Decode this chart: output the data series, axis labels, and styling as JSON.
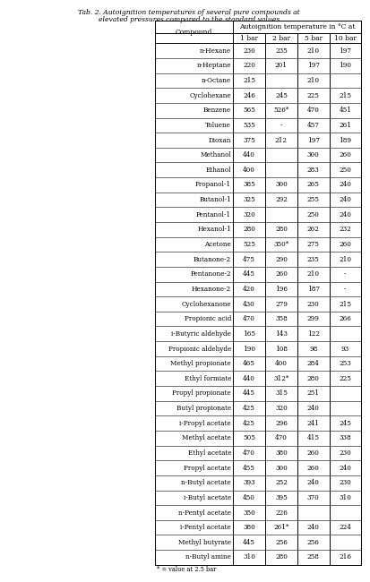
{
  "title_line1": "Tab. 2. Autoignition temperatures of several pure compounds at",
  "title_line2": "elevated pressures compared to the standard values",
  "header_row1": [
    "Compound",
    "Autoignition temperature in °C at",
    "",
    "",
    ""
  ],
  "header_row2": [
    "",
    "1 bar",
    "2 bar",
    "5 bar",
    "10 bar"
  ],
  "rows": [
    [
      "n-Hexane",
      "230",
      "235",
      "210",
      "197"
    ],
    [
      "n-Heptane",
      "220",
      "201",
      "197",
      "190"
    ],
    [
      "n-Octane",
      "215",
      "",
      "210",
      ""
    ],
    [
      "Cyclohexane",
      "246",
      "245",
      "225",
      "215"
    ],
    [
      "Benzene",
      "565",
      "526*",
      "470",
      "451"
    ],
    [
      "Toluene",
      "535",
      "-",
      "457",
      "261"
    ],
    [
      "Dioxan",
      "375",
      "212",
      "197",
      "189"
    ],
    [
      "Methanol",
      "440",
      "",
      "300",
      "260"
    ],
    [
      "Ethanol",
      "400",
      "",
      "283",
      "250"
    ],
    [
      "Propanol-1",
      "385",
      "300",
      "265",
      "240"
    ],
    [
      "Butanol-1",
      "325",
      "292",
      "255",
      "240"
    ],
    [
      "Pentanol-1",
      "320",
      "",
      "250",
      "240"
    ],
    [
      "Hexanol-1",
      "280",
      "280",
      "262",
      "232"
    ],
    [
      "Acetone",
      "525",
      "350*",
      "275",
      "260"
    ],
    [
      "Butanone-2",
      "475",
      "290",
      "235",
      "210"
    ],
    [
      "Pentanone-2",
      "445",
      "260",
      "210",
      "-"
    ],
    [
      "Hexanone-2",
      "420",
      "196",
      "187",
      "-"
    ],
    [
      "Cyclohexanone",
      "430",
      "279",
      "230",
      "215"
    ],
    [
      "Propionic acid",
      "470",
      "358",
      "299",
      "266"
    ],
    [
      "i-Butyric aldehyde",
      "165",
      "143",
      "122",
      ""
    ],
    [
      "Propionic aldehyde",
      "190",
      "108",
      "98",
      "93"
    ],
    [
      "Methyl propionate",
      "465",
      "400",
      "284",
      "253"
    ],
    [
      "Ethyl formiate",
      "440",
      "312*",
      "280",
      "225"
    ],
    [
      "Propyl propionate",
      "445",
      "315",
      "251",
      ""
    ],
    [
      "Butyl propionate",
      "425",
      "320",
      "240",
      ""
    ],
    [
      "i-Propyl acetate",
      "425",
      "296",
      "241",
      "245"
    ],
    [
      "Methyl acetate",
      "505",
      "470",
      "415",
      "338"
    ],
    [
      "Ethyl acetate",
      "470",
      "380",
      "260",
      "230"
    ],
    [
      "Propyl acetate",
      "455",
      "300",
      "260",
      "240"
    ],
    [
      "n-Butyl acetate",
      "393",
      "252",
      "240",
      "230"
    ],
    [
      "i-Butyl acetate",
      "450",
      "395",
      "370",
      "310"
    ],
    [
      "n-Pentyl acetate",
      "350",
      "226",
      "",
      ""
    ],
    [
      "i-Pentyl acetate",
      "380",
      "261*",
      "240",
      "224"
    ],
    [
      "Methyl butyrate",
      "445",
      "256",
      "256",
      ""
    ],
    [
      "n-Butyl amine",
      "310",
      "280",
      "258",
      "216"
    ]
  ],
  "footnote": "* = value at 2.5 bar"
}
